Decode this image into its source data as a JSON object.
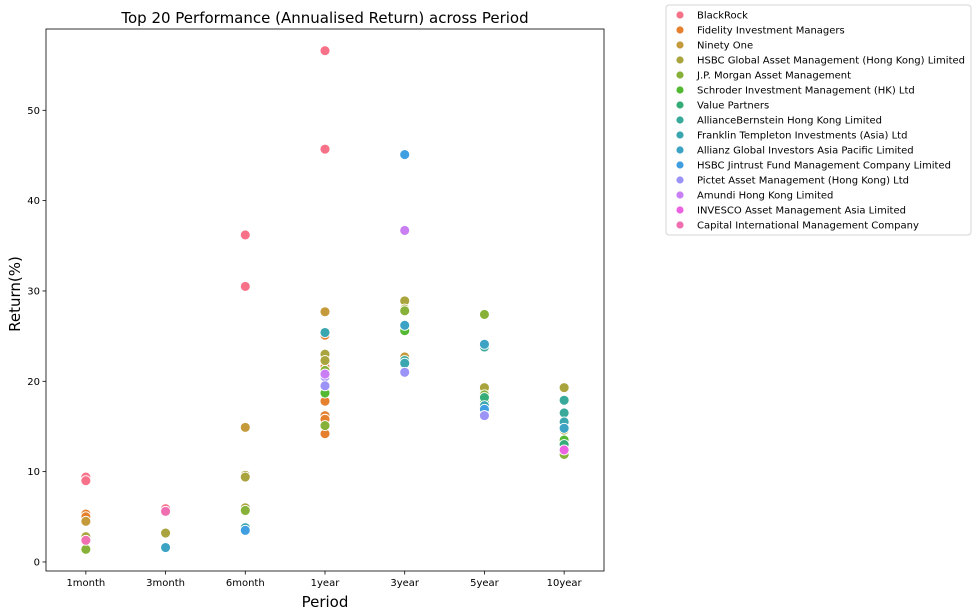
{
  "chart_data": {
    "type": "scatter",
    "title": "Top 20 Performance (Annualised Return) across Period",
    "xlabel": "Period",
    "ylabel": "Return(%)",
    "categories": [
      "1month",
      "3month",
      "6month",
      "1year",
      "3year",
      "5year",
      "10year"
    ],
    "ylim": [
      -1,
      59
    ],
    "yticks": [
      0,
      10,
      20,
      30,
      40,
      50
    ],
    "grid": false,
    "legend_position": "outside-right-top",
    "series": [
      {
        "name": "BlackRock",
        "color": "#f77189",
        "points": [
          [
            "1month",
            9.4
          ],
          [
            "1month",
            9.0
          ],
          [
            "3month",
            5.9
          ],
          [
            "6month",
            36.2
          ],
          [
            "6month",
            30.5
          ],
          [
            "1year",
            56.6
          ],
          [
            "1year",
            45.7
          ]
        ]
      },
      {
        "name": "Fidelity Investment Managers",
        "color": "#e5802f",
        "points": [
          [
            "1month",
            5.3
          ],
          [
            "1month",
            5.0
          ],
          [
            "1year",
            25.1
          ],
          [
            "1year",
            21.6
          ],
          [
            "1year",
            17.8
          ],
          [
            "1year",
            16.2
          ],
          [
            "1year",
            15.8
          ],
          [
            "1year",
            14.2
          ]
        ]
      },
      {
        "name": "Ninety One",
        "color": "#c49a3a",
        "points": [
          [
            "1month",
            4.5
          ],
          [
            "6month",
            14.9
          ],
          [
            "1year",
            27.7
          ],
          [
            "3year",
            22.7
          ],
          [
            "5year",
            19.0
          ]
        ]
      },
      {
        "name": "HSBC Global Asset Management  (Hong Kong) Limited",
        "color": "#a9a43d",
        "points": [
          [
            "1month",
            2.8
          ],
          [
            "3month",
            3.2
          ],
          [
            "6month",
            9.6
          ],
          [
            "6month",
            9.4
          ],
          [
            "6month",
            6.0
          ],
          [
            "1year",
            23.0
          ],
          [
            "1year",
            22.3
          ],
          [
            "3year",
            28.9
          ],
          [
            "3year",
            28.0
          ],
          [
            "5year",
            19.3
          ],
          [
            "10year",
            19.3
          ],
          [
            "10year",
            14.6
          ]
        ]
      },
      {
        "name": "J.P. Morgan Asset Management",
        "color": "#88b13a",
        "points": [
          [
            "1month",
            1.4
          ],
          [
            "6month",
            5.7
          ],
          [
            "1year",
            21.2
          ],
          [
            "1year",
            15.1
          ],
          [
            "3year",
            27.8
          ],
          [
            "5year",
            27.4
          ],
          [
            "5year",
            18.5
          ],
          [
            "10year",
            11.9
          ]
        ]
      },
      {
        "name": "Schroder Investment Management (HK) Ltd",
        "color": "#53b933",
        "points": [
          [
            "1year",
            18.7
          ],
          [
            "3year",
            25.6
          ],
          [
            "5year",
            17.8
          ],
          [
            "10year",
            13.5
          ]
        ]
      },
      {
        "name": "Value Partners",
        "color": "#36ad79",
        "points": [
          [
            "5year",
            18.2
          ],
          [
            "10year",
            13.0
          ]
        ]
      },
      {
        "name": "AllianceBernstein Hong Kong Limited",
        "color": "#38a99b",
        "points": [
          [
            "3year",
            22.3
          ],
          [
            "5year",
            23.8
          ],
          [
            "10year",
            17.9
          ],
          [
            "10year",
            16.5
          ]
        ]
      },
      {
        "name": "Franklin Templeton Investments (Asia) Ltd",
        "color": "#3aa6b0",
        "points": [
          [
            "6month",
            3.8
          ],
          [
            "1year",
            25.4
          ],
          [
            "3year",
            22.0
          ],
          [
            "5year",
            17.3
          ],
          [
            "10year",
            15.5
          ]
        ]
      },
      {
        "name": "Allianz Global Investors Asia Pacific Limited",
        "color": "#3ca3c4",
        "points": [
          [
            "3month",
            1.6
          ],
          [
            "3year",
            26.2
          ],
          [
            "5year",
            24.1
          ],
          [
            "10year",
            14.8
          ]
        ]
      },
      {
        "name": "HSBC Jintrust Fund Management Company Limited",
        "color": "#3f9fe0",
        "points": [
          [
            "6month",
            3.5
          ],
          [
            "3year",
            45.1
          ],
          [
            "5year",
            16.9
          ]
        ]
      },
      {
        "name": "Pictet Asset Management (Hong Kong) Ltd",
        "color": "#9b94f6",
        "points": [
          [
            "1year",
            20.5
          ],
          [
            "1year",
            19.5
          ],
          [
            "3year",
            21.0
          ],
          [
            "5year",
            16.2
          ]
        ]
      },
      {
        "name": "Amundi Hong Kong Limited",
        "color": "#c97ef4",
        "points": [
          [
            "1year",
            20.8
          ],
          [
            "3year",
            36.7
          ]
        ]
      },
      {
        "name": "INVESCO Asset Management Asia Limited",
        "color": "#ec63e1",
        "points": [
          [
            "10year",
            12.4
          ]
        ]
      },
      {
        "name": "Capital International Management Company",
        "color": "#f06fb0",
        "points": [
          [
            "1month",
            2.4
          ],
          [
            "3month",
            5.6
          ]
        ]
      }
    ]
  }
}
